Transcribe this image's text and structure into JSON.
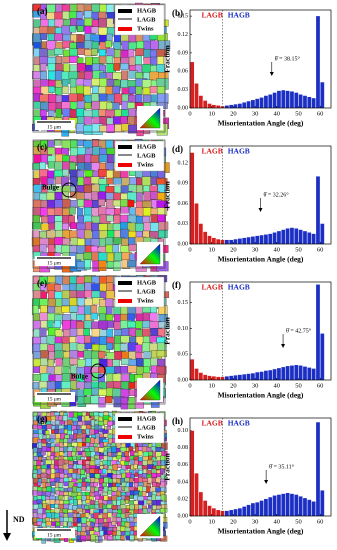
{
  "maps": [
    {
      "label": "(a)",
      "legend": [
        "HAGB",
        "LAGB",
        "Twins"
      ],
      "scale": "15 μm"
    },
    {
      "label": "(c)",
      "legend": [
        "HAGB",
        "LAGB",
        "Twins"
      ],
      "scale": "15 μm",
      "note": "Bulge"
    },
    {
      "label": "(e)",
      "legend": [
        "HAGB",
        "LAGB",
        "Twins"
      ],
      "scale": "15 μm",
      "note": "Bulge"
    },
    {
      "label": "(g)",
      "legend": [
        "HAGB",
        "LAGB",
        "Twins"
      ],
      "scale": "15 μm"
    }
  ],
  "direction": "ND",
  "chart_data": [
    {
      "type": "histogram",
      "panel": "(b)",
      "x_label": "Misorientation Angle (deg)",
      "y_label": "Fraction",
      "annotation": "θ̄ = 38.15°",
      "threshold": 15,
      "xlim": [
        0,
        65
      ],
      "xticks": [
        0,
        10,
        20,
        30,
        40,
        50,
        60
      ],
      "ylim": [
        0,
        0.16
      ],
      "yticks": [
        {
          "value": 0,
          "label": "0.00"
        },
        {
          "value": 0.03,
          "label": "0.03"
        },
        {
          "value": 0.06,
          "label": "0.06"
        },
        {
          "value": 0.09,
          "label": "0.09"
        },
        {
          "value": 0.12,
          "label": "0.12"
        },
        {
          "value": 0.15,
          "label": "0.15"
        }
      ],
      "series": [
        {
          "name": "LAGB",
          "color": "#d62020",
          "bins": [
            0,
            2,
            4,
            6,
            8,
            10,
            12,
            14,
            16
          ],
          "values": [
            0.075,
            0.04,
            0.02,
            0.012,
            0.007,
            0.005,
            0.004,
            0.003
          ]
        },
        {
          "name": "HAGB",
          "color": "#1c2fc4",
          "bins": [
            16,
            18,
            20,
            22,
            24,
            26,
            28,
            30,
            32,
            34,
            36,
            38,
            40,
            42,
            44,
            46,
            48,
            50,
            52,
            54,
            56,
            58,
            60,
            62
          ],
          "values": [
            0.004,
            0.005,
            0.006,
            0.007,
            0.009,
            0.011,
            0.013,
            0.015,
            0.017,
            0.02,
            0.022,
            0.025,
            0.028,
            0.029,
            0.028,
            0.027,
            0.025,
            0.022,
            0.02,
            0.018,
            0.016,
            0.15,
            0.042
          ]
        }
      ]
    },
    {
      "type": "histogram",
      "panel": "(d)",
      "x_label": "Misorientation Angle (deg)",
      "y_label": "Fraction",
      "annotation": "θ̄ = 32.26°",
      "threshold": 15,
      "xlim": [
        0,
        65
      ],
      "xticks": [
        0,
        10,
        20,
        30,
        40,
        50,
        60
      ],
      "ylim": [
        0,
        0.145
      ],
      "yticks": [
        {
          "value": 0,
          "label": "0.00"
        },
        {
          "value": 0.03,
          "label": "0.03"
        },
        {
          "value": 0.06,
          "label": "0.06"
        },
        {
          "value": 0.09,
          "label": "0.09"
        },
        {
          "value": 0.12,
          "label": "0.12"
        }
      ],
      "series": [
        {
          "name": "LAGB",
          "color": "#d62020",
          "bins": [
            0,
            2,
            4,
            6,
            8,
            10,
            12,
            14,
            16
          ],
          "values": [
            0.135,
            0.06,
            0.03,
            0.018,
            0.012,
            0.009,
            0.007,
            0.006
          ]
        },
        {
          "name": "HAGB",
          "color": "#1c2fc4",
          "bins": [
            16,
            18,
            20,
            22,
            24,
            26,
            28,
            30,
            32,
            34,
            36,
            38,
            40,
            42,
            44,
            46,
            48,
            50,
            52,
            54,
            56,
            58,
            60,
            62
          ],
          "values": [
            0.006,
            0.006,
            0.007,
            0.008,
            0.009,
            0.01,
            0.011,
            0.012,
            0.013,
            0.014,
            0.015,
            0.017,
            0.019,
            0.021,
            0.023,
            0.024,
            0.023,
            0.021,
            0.019,
            0.017,
            0.015,
            0.1,
            0.03
          ]
        }
      ]
    },
    {
      "type": "histogram",
      "panel": "(f)",
      "x_label": "Misorientation Angle (deg)",
      "y_label": "Fraction",
      "annotation": "θ̄ = 42.75°",
      "threshold": 15,
      "xlim": [
        0,
        65
      ],
      "xticks": [
        0,
        10,
        20,
        30,
        40,
        50,
        60
      ],
      "ylim": [
        0,
        0.19
      ],
      "yticks": [
        {
          "value": 0,
          "label": "0.00"
        },
        {
          "value": 0.05,
          "label": "0.05"
        },
        {
          "value": 0.1,
          "label": "0.10"
        },
        {
          "value": 0.15,
          "label": "0.15"
        }
      ],
      "series": [
        {
          "name": "LAGB",
          "color": "#d62020",
          "bins": [
            0,
            2,
            4,
            6,
            8,
            10,
            12,
            14,
            16
          ],
          "values": [
            0.04,
            0.022,
            0.014,
            0.01,
            0.008,
            0.007,
            0.006,
            0.006
          ]
        },
        {
          "name": "HAGB",
          "color": "#1c2fc4",
          "bins": [
            16,
            18,
            20,
            22,
            24,
            26,
            28,
            30,
            32,
            34,
            36,
            38,
            40,
            42,
            44,
            46,
            48,
            50,
            52,
            54,
            56,
            58,
            60,
            62
          ],
          "values": [
            0.007,
            0.008,
            0.009,
            0.01,
            0.011,
            0.012,
            0.013,
            0.015,
            0.016,
            0.018,
            0.019,
            0.021,
            0.023,
            0.025,
            0.027,
            0.028,
            0.029,
            0.028,
            0.026,
            0.024,
            0.022,
            0.185,
            0.09
          ]
        }
      ]
    },
    {
      "type": "histogram",
      "panel": "(h)",
      "x_label": "Misorientation Angle (deg)",
      "y_label": "Fraction",
      "annotation": "θ̄ = 35.11°",
      "threshold": 15,
      "xlim": [
        0,
        65
      ],
      "xticks": [
        0,
        10,
        20,
        30,
        40,
        50,
        60
      ],
      "ylim": [
        0,
        0.115
      ],
      "yticks": [
        {
          "value": 0,
          "label": "0.00"
        },
        {
          "value": 0.02,
          "label": "0.02"
        },
        {
          "value": 0.04,
          "label": "0.04"
        },
        {
          "value": 0.06,
          "label": "0.06"
        },
        {
          "value": 0.08,
          "label": "0.08"
        },
        {
          "value": 0.1,
          "label": "0.10"
        }
      ],
      "series": [
        {
          "name": "LAGB",
          "color": "#d62020",
          "bins": [
            0,
            2,
            4,
            6,
            8,
            10,
            12,
            14,
            16
          ],
          "values": [
            0.1,
            0.05,
            0.028,
            0.018,
            0.012,
            0.009,
            0.007,
            0.006
          ]
        },
        {
          "name": "HAGB",
          "color": "#1c2fc4",
          "bins": [
            16,
            18,
            20,
            22,
            24,
            26,
            28,
            30,
            32,
            34,
            36,
            38,
            40,
            42,
            44,
            46,
            48,
            50,
            52,
            54,
            56,
            58,
            60,
            62
          ],
          "values": [
            0.006,
            0.007,
            0.008,
            0.009,
            0.011,
            0.013,
            0.015,
            0.016,
            0.018,
            0.02,
            0.022,
            0.024,
            0.025,
            0.026,
            0.027,
            0.026,
            0.025,
            0.023,
            0.021,
            0.019,
            0.017,
            0.11,
            0.03
          ]
        }
      ]
    }
  ]
}
